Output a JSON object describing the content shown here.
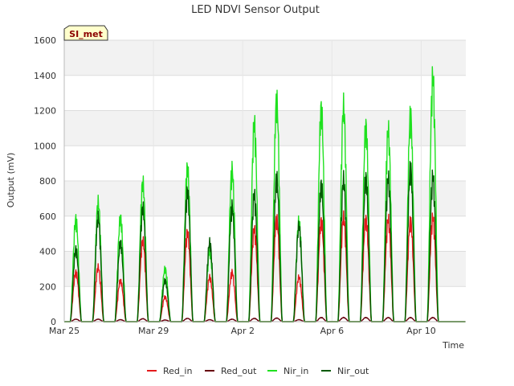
{
  "chart_data": {
    "type": "line",
    "title": "LED NDVI Sensor Output",
    "xlabel": "Time",
    "ylabel": "Output (mV)",
    "ylim": [
      0,
      1600
    ],
    "yticks": [
      0,
      200,
      400,
      600,
      800,
      1000,
      1200,
      1400,
      1600
    ],
    "xlim": [
      "2023-03-25",
      "2023-04-12"
    ],
    "xticks": [
      {
        "date": "2023-03-25",
        "label": "Mar 25"
      },
      {
        "date": "2023-03-29",
        "label": "Mar 29"
      },
      {
        "date": "2023-04-02",
        "label": "Apr 2"
      },
      {
        "date": "2023-04-06",
        "label": "Apr 6"
      },
      {
        "date": "2023-04-10",
        "label": "Apr 10"
      }
    ],
    "grid": true,
    "legend_position": "bottom",
    "site_badge": "SI_met",
    "days": [
      "2023-03-25",
      "2023-03-26",
      "2023-03-27",
      "2023-03-28",
      "2023-03-29",
      "2023-03-30",
      "2023-03-31",
      "2023-04-01",
      "2023-04-02",
      "2023-04-03",
      "2023-04-04",
      "2023-04-05",
      "2023-04-06",
      "2023-04-07",
      "2023-04-08",
      "2023-04-09",
      "2023-04-10",
      "2023-04-11"
    ],
    "series": [
      {
        "name": "Red_in",
        "color": "#e41a1c",
        "daily_peak": [
          300,
          330,
          250,
          490,
          150,
          540,
          270,
          300,
          560,
          620,
          270,
          610,
          630,
          620,
          620,
          610,
          630,
          0
        ]
      },
      {
        "name": "Red_out",
        "color": "#67000d",
        "daily_peak": [
          15,
          15,
          12,
          18,
          10,
          20,
          12,
          15,
          20,
          22,
          12,
          25,
          25,
          25,
          25,
          25,
          25,
          0
        ]
      },
      {
        "name": "Nir_in",
        "color": "#1fe11f",
        "daily_peak": [
          620,
          720,
          630,
          840,
          320,
          930,
          430,
          920,
          1200,
          1340,
          610,
          1290,
          1300,
          1180,
          1160,
          1250,
          1480,
          0
        ]
      },
      {
        "name": "Nir_out",
        "color": "#005a00",
        "daily_peak": [
          440,
          630,
          480,
          690,
          250,
          790,
          480,
          700,
          770,
          870,
          580,
          830,
          860,
          870,
          870,
          930,
          880,
          0
        ]
      }
    ]
  }
}
